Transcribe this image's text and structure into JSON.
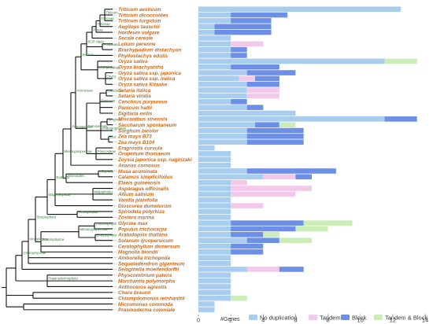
{
  "colors": {
    "No duplication": "#a9cdee",
    "Tandem": "#f2c9ea",
    "Block": "#6d8fe6",
    "Tandem & Block": "#cbedb7",
    "species": "#c96a1b",
    "clade": "#2e7d32",
    "dotted": "#9a9a9a"
  },
  "clade_labels": [
    "Triticum",
    "Triticeae",
    "Triticeae",
    "Poeae",
    "Pooideae",
    "BOP clade",
    "Oryza",
    "Ehrhartoideae",
    "Setaria",
    "Cenchrus",
    "Paniceae",
    "Sorghum",
    "Zea",
    "Andropogoneae",
    "Panicoideae",
    "Commelinids",
    "Arecaceae",
    "Petrosaviidae",
    "Liliopsida",
    "Alismatales",
    "Mesangiospermae",
    "Malpighiales",
    "Eudicots",
    "Pentapetalae",
    "Magnoliopsida",
    "Tracheophyta",
    "Embryophyta",
    "Mesangiospermae",
    "Streptophytina",
    "Streptophyta",
    "Viridiplantae",
    "Chlorophyceae",
    "Prasinodermophyta"
  ],
  "chart_data": {
    "type": "bar",
    "stacked": true,
    "xlabel": "#Genes",
    "xlim": [
      0,
      14
    ],
    "xticks": [
      0,
      2,
      4,
      6,
      8,
      10,
      12,
      14
    ],
    "grid": false,
    "legend_position": "bottom-right",
    "legend": [
      "No duplication",
      "Tandem",
      "Block",
      "Tandem & Block"
    ],
    "categories": [
      "Triticum aestivum",
      "Triticum dicoccoides",
      "Triticum turgidum",
      "Aegilops tauschii",
      "Hordeum vulgare",
      "Secale cereale",
      "Lolium perenne",
      "Brachypodium distachyon",
      "Phyllostachys edulis",
      "Oryza sativa",
      "Oryza brachyantha",
      "Oryza sativa ssp. japonica",
      "Oryza sativa ssp. indica",
      "Oryza sativa Kitaake",
      "Setaria italica",
      "Setaria viridis",
      "Cenchrus purpureus",
      "Panicum hallii",
      "Digitaria exilis",
      "Miscanthus sinensis",
      "Saccharum spontaneum",
      "Sorghum bicolor",
      "Zea mays B73",
      "Zea mays B104",
      "Eragrostis curvula",
      "Oropetium thomaeum",
      "Zoysia japonica ssp. nagirizaki",
      "Ananas comosus",
      "Musa acuminata",
      "Calamus simplicifolius",
      "Elaeis guineensis",
      "Asparagus officinalis",
      "Allium sativum",
      "Vanilla planifolia",
      "Dioscorea dumetorum",
      "Spirodela polyrhiza",
      "Zostera marina",
      "Glycine max",
      "Populus trichocarpa",
      "Arabidopsis thaliana",
      "Solanum lycopersicum",
      "Ceratophyllum demersum",
      "Magnolia biondii",
      "Amborella trichopoda",
      "Sequoiadendron giganteum",
      "Selaginella moellendorffii",
      "Physcomitrium patens",
      "Marchantia polymorpha",
      "Anthoceros agrestis",
      "Chara braunii",
      "Chlamydomonas reinhardtii",
      "Micromonas commoda",
      "Prasinoderma coloniale"
    ],
    "series": [
      {
        "name": "No duplication",
        "values": [
          12.5,
          2,
          2,
          1,
          1,
          2,
          2,
          2,
          2,
          11.5,
          2,
          3,
          2.5,
          3,
          3,
          3,
          2,
          3,
          6,
          11.5,
          3.5,
          3,
          3,
          3,
          1,
          2,
          2,
          2,
          3,
          4,
          2,
          2,
          2,
          2,
          2,
          2,
          2,
          2,
          2,
          2,
          3,
          2,
          2,
          2,
          2,
          3,
          2,
          2,
          2,
          2,
          2,
          1,
          1
        ]
      },
      {
        "name": "Tandem",
        "values": [
          0,
          0,
          0,
          0,
          0,
          0,
          2,
          0,
          0,
          0,
          0,
          0,
          1,
          0,
          2,
          2,
          0,
          0,
          0,
          0,
          0,
          0,
          0,
          0,
          0,
          0,
          0,
          0,
          0,
          2,
          1,
          5,
          4,
          0,
          2,
          0,
          0,
          0,
          0,
          0,
          0,
          0,
          0,
          0,
          0,
          2,
          0,
          0,
          0,
          0,
          0,
          0,
          0
        ]
      },
      {
        "name": "Block",
        "values": [
          0,
          3.5,
          2.5,
          3.5,
          3.5,
          0,
          0,
          1,
          1,
          0,
          3,
          3,
          1.5,
          2,
          0,
          0,
          1,
          1,
          0,
          2,
          1.5,
          3.5,
          3.5,
          3.5,
          0,
          0,
          0,
          0,
          5.5,
          1,
          0,
          0,
          0,
          0,
          0,
          0,
          0,
          4.5,
          4,
          2,
          2,
          2,
          2,
          0,
          0,
          1.5,
          0,
          0,
          0,
          0,
          0,
          0,
          0
        ]
      },
      {
        "name": "Tandem & Block",
        "values": [
          0,
          0,
          0,
          0,
          0,
          0,
          0,
          0,
          0,
          2,
          0,
          0,
          0,
          0,
          0,
          0,
          0,
          0,
          0,
          0,
          1,
          0,
          0,
          0,
          0,
          0,
          0,
          0,
          0,
          0,
          0,
          0,
          0,
          0,
          0,
          0,
          0,
          3,
          2,
          1,
          2,
          0,
          0,
          0,
          0,
          0,
          0,
          0,
          0,
          0,
          1,
          0,
          0
        ]
      }
    ]
  }
}
